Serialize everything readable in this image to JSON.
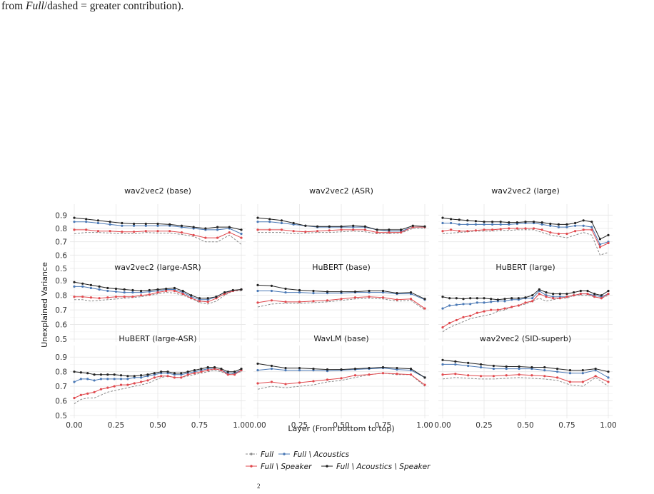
{
  "caption": {
    "prefix": "from ",
    "full_italic": "Full",
    "suffix": "/dashed = greater contribution)."
  },
  "footer_mark": "2",
  "chart_data": {
    "type": "line",
    "ylabel": "Unexplained Variance",
    "xlabel": "Layer (From bottom to top)",
    "ylim": [
      0.5,
      0.95
    ],
    "xlim": [
      0,
      1
    ],
    "yticks": [
      "0.5",
      "0.6",
      "0.7",
      "0.8",
      "0.9"
    ],
    "xticks": [
      "0.00",
      "0.25",
      "0.50",
      "0.75",
      "1.00"
    ],
    "grid": true,
    "legend_position": "bottom",
    "series_styles": [
      {
        "name": "Full",
        "color": "#8a8a8a",
        "dashed": true
      },
      {
        "name": "Full \\ Acoustics",
        "color": "#4a78b5",
        "dashed": false
      },
      {
        "name": "Full \\ Speaker",
        "color": "#e0484d",
        "dashed": false
      },
      {
        "name": "Full \\ Acoustics \\ Speaker",
        "color": "#222222",
        "dashed": false
      }
    ],
    "panels": [
      {
        "title": "wav2vec2 (base)",
        "series": [
          [
            0.76,
            0.77,
            0.77,
            0.765,
            0.76,
            0.76,
            0.77,
            0.765,
            0.765,
            0.755,
            0.74,
            0.7,
            0.7,
            0.75,
            0.68
          ],
          [
            0.85,
            0.85,
            0.84,
            0.83,
            0.82,
            0.82,
            0.82,
            0.82,
            0.82,
            0.81,
            0.8,
            0.79,
            0.79,
            0.8,
            0.76
          ],
          [
            0.79,
            0.79,
            0.78,
            0.78,
            0.775,
            0.775,
            0.78,
            0.78,
            0.78,
            0.77,
            0.75,
            0.73,
            0.73,
            0.77,
            0.73
          ],
          [
            0.88,
            0.87,
            0.86,
            0.85,
            0.84,
            0.835,
            0.835,
            0.835,
            0.83,
            0.82,
            0.81,
            0.8,
            0.81,
            0.81,
            0.79
          ]
        ]
      },
      {
        "title": "wav2vec2 (ASR)",
        "series": [
          [
            0.77,
            0.77,
            0.77,
            0.76,
            0.765,
            0.77,
            0.77,
            0.775,
            0.78,
            0.775,
            0.76,
            0.76,
            0.765,
            0.8,
            0.8
          ],
          [
            0.85,
            0.85,
            0.84,
            0.83,
            0.82,
            0.81,
            0.81,
            0.81,
            0.81,
            0.81,
            0.79,
            0.78,
            0.78,
            0.81,
            0.81
          ],
          [
            0.79,
            0.79,
            0.79,
            0.78,
            0.775,
            0.78,
            0.785,
            0.79,
            0.79,
            0.79,
            0.77,
            0.77,
            0.77,
            0.81,
            0.81
          ],
          [
            0.88,
            0.87,
            0.86,
            0.84,
            0.82,
            0.815,
            0.815,
            0.815,
            0.82,
            0.815,
            0.79,
            0.79,
            0.79,
            0.82,
            0.815
          ]
        ]
      },
      {
        "title": "wav2vec2 (large)",
        "series": [
          [
            0.76,
            0.765,
            0.77,
            0.775,
            0.78,
            0.78,
            0.78,
            0.785,
            0.785,
            0.79,
            0.79,
            0.79,
            0.77,
            0.75,
            0.74,
            0.73,
            0.75,
            0.77,
            0.75,
            0.6,
            0.62
          ],
          [
            0.84,
            0.84,
            0.83,
            0.83,
            0.83,
            0.83,
            0.83,
            0.83,
            0.83,
            0.835,
            0.84,
            0.84,
            0.83,
            0.82,
            0.81,
            0.81,
            0.82,
            0.82,
            0.81,
            0.68,
            0.7
          ],
          [
            0.78,
            0.79,
            0.78,
            0.78,
            0.785,
            0.79,
            0.79,
            0.795,
            0.8,
            0.8,
            0.8,
            0.8,
            0.79,
            0.77,
            0.76,
            0.76,
            0.78,
            0.79,
            0.79,
            0.66,
            0.69
          ],
          [
            0.88,
            0.87,
            0.865,
            0.86,
            0.855,
            0.85,
            0.85,
            0.85,
            0.845,
            0.845,
            0.85,
            0.85,
            0.845,
            0.835,
            0.83,
            0.83,
            0.84,
            0.86,
            0.85,
            0.72,
            0.75
          ]
        ]
      },
      {
        "title": "wav2vec2 (large-ASR)",
        "series": [
          [
            0.77,
            0.77,
            0.76,
            0.765,
            0.77,
            0.775,
            0.78,
            0.785,
            0.79,
            0.8,
            0.81,
            0.82,
            0.815,
            0.8,
            0.78,
            0.75,
            0.74,
            0.76,
            0.8,
            0.83,
            0.83
          ],
          [
            0.86,
            0.86,
            0.85,
            0.84,
            0.83,
            0.825,
            0.82,
            0.82,
            0.82,
            0.825,
            0.83,
            0.84,
            0.84,
            0.82,
            0.79,
            0.77,
            0.77,
            0.79,
            0.82,
            0.83,
            0.84
          ],
          [
            0.79,
            0.79,
            0.785,
            0.78,
            0.785,
            0.79,
            0.79,
            0.79,
            0.8,
            0.805,
            0.82,
            0.83,
            0.83,
            0.81,
            0.78,
            0.76,
            0.755,
            0.78,
            0.81,
            0.83,
            0.84
          ],
          [
            0.89,
            0.88,
            0.87,
            0.86,
            0.85,
            0.845,
            0.84,
            0.835,
            0.83,
            0.835,
            0.84,
            0.845,
            0.85,
            0.83,
            0.8,
            0.78,
            0.78,
            0.79,
            0.82,
            0.835,
            0.84
          ]
        ]
      },
      {
        "title": "HuBERT (base)",
        "series": [
          [
            0.72,
            0.74,
            0.745,
            0.745,
            0.75,
            0.755,
            0.765,
            0.775,
            0.78,
            0.775,
            0.76,
            0.765,
            0.7
          ],
          [
            0.83,
            0.83,
            0.82,
            0.82,
            0.815,
            0.815,
            0.815,
            0.82,
            0.82,
            0.82,
            0.81,
            0.81,
            0.77
          ],
          [
            0.75,
            0.765,
            0.755,
            0.755,
            0.76,
            0.765,
            0.775,
            0.785,
            0.79,
            0.785,
            0.77,
            0.775,
            0.71
          ],
          [
            0.87,
            0.865,
            0.845,
            0.835,
            0.83,
            0.825,
            0.825,
            0.825,
            0.83,
            0.83,
            0.815,
            0.82,
            0.775
          ]
        ]
      },
      {
        "title": "HuBERT (large)",
        "series": [
          [
            0.55,
            0.58,
            0.6,
            0.62,
            0.64,
            0.65,
            0.66,
            0.67,
            0.69,
            0.7,
            0.72,
            0.73,
            0.74,
            0.76,
            0.78,
            0.76,
            0.77,
            0.78,
            0.78,
            0.8,
            0.8,
            0.8,
            0.79,
            0.78,
            0.8
          ],
          [
            0.71,
            0.73,
            0.735,
            0.74,
            0.74,
            0.75,
            0.75,
            0.755,
            0.76,
            0.76,
            0.77,
            0.77,
            0.78,
            0.78,
            0.83,
            0.8,
            0.79,
            0.79,
            0.79,
            0.8,
            0.81,
            0.81,
            0.8,
            0.79,
            0.81
          ],
          [
            0.58,
            0.61,
            0.63,
            0.65,
            0.66,
            0.68,
            0.69,
            0.7,
            0.7,
            0.71,
            0.72,
            0.73,
            0.75,
            0.76,
            0.81,
            0.79,
            0.78,
            0.78,
            0.79,
            0.8,
            0.81,
            0.81,
            0.79,
            0.78,
            0.81
          ],
          [
            0.79,
            0.78,
            0.78,
            0.775,
            0.78,
            0.78,
            0.78,
            0.775,
            0.77,
            0.775,
            0.78,
            0.78,
            0.785,
            0.8,
            0.84,
            0.82,
            0.81,
            0.81,
            0.81,
            0.82,
            0.83,
            0.83,
            0.81,
            0.8,
            0.83
          ]
        ]
      },
      {
        "title": "HuBERT (large-ASR)",
        "series": [
          [
            0.58,
            0.61,
            0.62,
            0.62,
            0.64,
            0.66,
            0.67,
            0.68,
            0.69,
            0.7,
            0.71,
            0.72,
            0.74,
            0.76,
            0.77,
            0.76,
            0.76,
            0.77,
            0.78,
            0.79,
            0.8,
            0.81,
            0.8,
            0.78,
            0.79,
            0.8
          ],
          [
            0.73,
            0.75,
            0.75,
            0.74,
            0.75,
            0.75,
            0.75,
            0.75,
            0.75,
            0.76,
            0.76,
            0.77,
            0.78,
            0.79,
            0.79,
            0.78,
            0.78,
            0.79,
            0.8,
            0.81,
            0.82,
            0.82,
            0.81,
            0.79,
            0.79,
            0.81
          ],
          [
            0.62,
            0.64,
            0.65,
            0.66,
            0.68,
            0.69,
            0.7,
            0.71,
            0.71,
            0.72,
            0.73,
            0.74,
            0.76,
            0.77,
            0.77,
            0.76,
            0.76,
            0.78,
            0.79,
            0.8,
            0.81,
            0.82,
            0.81,
            0.78,
            0.78,
            0.81
          ],
          [
            0.8,
            0.795,
            0.79,
            0.78,
            0.78,
            0.78,
            0.78,
            0.775,
            0.77,
            0.77,
            0.775,
            0.78,
            0.79,
            0.8,
            0.8,
            0.79,
            0.79,
            0.8,
            0.81,
            0.82,
            0.83,
            0.83,
            0.82,
            0.8,
            0.8,
            0.82
          ]
        ]
      },
      {
        "title": "WavLM (base)",
        "series": [
          [
            0.68,
            0.7,
            0.69,
            0.7,
            0.71,
            0.73,
            0.74,
            0.76,
            0.78,
            0.79,
            0.78,
            0.78,
            0.7
          ],
          [
            0.81,
            0.82,
            0.81,
            0.81,
            0.81,
            0.805,
            0.81,
            0.815,
            0.82,
            0.825,
            0.815,
            0.81,
            0.76
          ],
          [
            0.72,
            0.73,
            0.715,
            0.725,
            0.735,
            0.745,
            0.755,
            0.775,
            0.78,
            0.79,
            0.785,
            0.78,
            0.71
          ],
          [
            0.855,
            0.84,
            0.825,
            0.825,
            0.82,
            0.815,
            0.815,
            0.82,
            0.825,
            0.83,
            0.825,
            0.82,
            0.76
          ]
        ]
      },
      {
        "title": "wav2vec2 (SID-superb)",
        "series": [
          [
            0.75,
            0.76,
            0.755,
            0.75,
            0.75,
            0.755,
            0.76,
            0.755,
            0.75,
            0.74,
            0.71,
            0.7,
            0.76,
            0.7
          ],
          [
            0.85,
            0.85,
            0.84,
            0.83,
            0.82,
            0.82,
            0.82,
            0.82,
            0.81,
            0.8,
            0.79,
            0.79,
            0.81,
            0.76
          ],
          [
            0.78,
            0.785,
            0.775,
            0.77,
            0.77,
            0.775,
            0.78,
            0.775,
            0.77,
            0.76,
            0.73,
            0.73,
            0.77,
            0.73
          ],
          [
            0.88,
            0.87,
            0.86,
            0.85,
            0.84,
            0.835,
            0.835,
            0.83,
            0.83,
            0.82,
            0.81,
            0.81,
            0.82,
            0.8
          ]
        ]
      }
    ]
  }
}
